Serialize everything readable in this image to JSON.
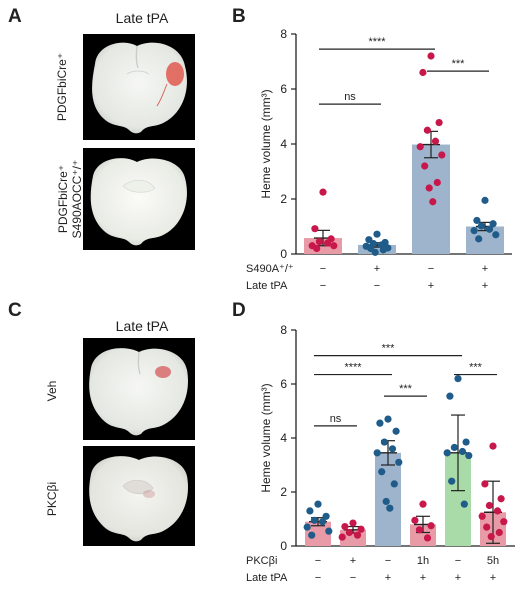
{
  "panels": {
    "A": {
      "letter": "A",
      "title": "Late tPA",
      "rows": [
        {
          "label": "PDGFbiCre⁺",
          "image": "brain-slice-with-hemorrhage"
        },
        {
          "label": "PDGFbiCre⁺ S490AOCC⁺/⁺",
          "label_line1": "PDGFbiCre⁺",
          "label_line2": "S490AOCC⁺/⁺",
          "image": "brain-slice"
        }
      ]
    },
    "C": {
      "letter": "C",
      "title": "Late tPA",
      "rows": [
        {
          "label": "Veh",
          "image": "brain-slice-with-hemorrhage"
        },
        {
          "label": "PKCβi",
          "image": "brain-slice"
        }
      ]
    },
    "B": {
      "letter": "B"
    },
    "D": {
      "letter": "D"
    }
  },
  "colors": {
    "pink_bar": "#e89aa6",
    "pink_dot": "#c8174a",
    "blue_bar": "#9db4cc",
    "blue_dot": "#1f5c8a",
    "green_bar": "#a8dba8"
  },
  "chart_data": [
    {
      "id": "B",
      "type": "bar",
      "ylabel": "Heme volume (mm³)",
      "ylim": [
        0,
        8
      ],
      "yticks": [
        0,
        2,
        4,
        6,
        8
      ],
      "condition_rows": [
        {
          "name": "S490A⁺/⁺",
          "values": [
            "−",
            "+",
            "−",
            "+"
          ]
        },
        {
          "name": "Late tPA",
          "values": [
            "−",
            "−",
            "+",
            "+"
          ]
        }
      ],
      "bars": [
        {
          "mean": 0.58,
          "sem": 0.28,
          "bar": "pink",
          "dot": "pink",
          "points": [
            2.25,
            0.92,
            0.55,
            0.45,
            0.4,
            0.3,
            0.3,
            0.2
          ]
        },
        {
          "mean": 0.33,
          "sem": 0.08,
          "bar": "blue",
          "dot": "blue",
          "points": [
            0.72,
            0.52,
            0.42,
            0.38,
            0.33,
            0.28,
            0.22,
            0.2,
            0.15,
            0.06
          ]
        },
        {
          "mean": 3.98,
          "sem": 0.48,
          "bar": "blue",
          "dot": "pink",
          "points": [
            7.2,
            6.6,
            4.78,
            4.5,
            4.1,
            3.9,
            3.6,
            3.2,
            2.6,
            2.4,
            1.9
          ]
        },
        {
          "mean": 1.0,
          "sem": 0.15,
          "bar": "blue",
          "dot": "blue",
          "points": [
            1.95,
            1.22,
            1.1,
            1.02,
            0.9,
            0.85,
            0.7,
            0.55
          ]
        }
      ],
      "significance": [
        {
          "from": 0,
          "to": 2,
          "label": "****",
          "y": 7.45
        },
        {
          "from": 0,
          "to": 1,
          "label": "ns",
          "y": 5.45
        },
        {
          "from": 2,
          "to": 3,
          "label": "***",
          "y": 6.65
        }
      ]
    },
    {
      "id": "D",
      "type": "bar",
      "ylabel": "Heme volume (mm³)",
      "ylim": [
        0,
        8
      ],
      "yticks": [
        0,
        2,
        4,
        6,
        8
      ],
      "condition_rows": [
        {
          "name": "PKCβi",
          "values": [
            "−",
            "+",
            "−",
            "1h",
            "−",
            "5h"
          ]
        },
        {
          "name": "Late tPA",
          "values": [
            "−",
            "−",
            "+",
            "+",
            "+",
            "+"
          ]
        }
      ],
      "bars": [
        {
          "mean": 0.9,
          "sem": 0.15,
          "bar": "pink",
          "dot": "blue",
          "points": [
            1.55,
            1.3,
            1.1,
            0.95,
            0.9,
            0.7,
            0.55,
            0.4
          ]
        },
        {
          "mean": 0.6,
          "sem": 0.12,
          "bar": "pink",
          "dot": "pink",
          "points": [
            0.85,
            0.72,
            0.62,
            0.5,
            0.4,
            0.33
          ]
        },
        {
          "mean": 3.45,
          "sem": 0.45,
          "bar": "blue",
          "dot": "blue",
          "points": [
            4.7,
            4.55,
            4.25,
            3.85,
            3.6,
            3.45,
            3.1,
            2.75,
            2.3,
            1.65,
            1.4
          ]
        },
        {
          "mean": 0.8,
          "sem": 0.3,
          "bar": "pink",
          "dot": "pink",
          "points": [
            1.55,
            0.95,
            0.75,
            0.6,
            0.3
          ]
        },
        {
          "mean": 3.45,
          "sem": 1.4,
          "bar": "green",
          "dot": "blue",
          "points": [
            6.2,
            5.55,
            3.85,
            3.65,
            3.5,
            3.45,
            3.35,
            2.4,
            1.55
          ]
        },
        {
          "mean": 1.25,
          "sem": 1.15,
          "bar": "pink",
          "dot": "pink",
          "points": [
            3.7,
            2.3,
            1.75,
            1.5,
            1.3,
            1.1,
            0.9,
            0.7,
            0.5,
            0.35
          ]
        }
      ],
      "significance": [
        {
          "from": 0,
          "to": 4,
          "label": "***",
          "y": 7.05
        },
        {
          "from": 0,
          "to": 2,
          "label": "****",
          "y": 6.35
        },
        {
          "from": 2,
          "to": 3,
          "label": "***",
          "y": 5.55
        },
        {
          "from": 4,
          "to": 5,
          "label": "***",
          "y": 6.35
        },
        {
          "from": 0,
          "to": 1,
          "label": "ns",
          "y": 4.45
        }
      ]
    }
  ]
}
